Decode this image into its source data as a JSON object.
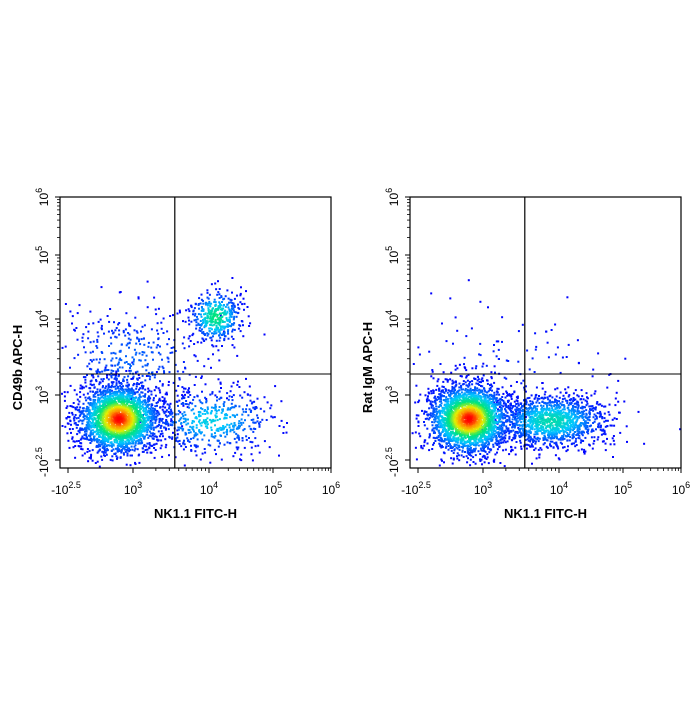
{
  "chart_data": [
    {
      "type": "scatter",
      "subtype": "flow-cytometry-density-dot-plot",
      "xlabel": "NK1.1 FITC-H",
      "ylabel": "CD49b APC-H",
      "x_scale": "biexponential (log10 decades)",
      "y_scale": "biexponential (log10 decades)",
      "xlim_log10": [
        -2.5,
        6
      ],
      "ylim_log10": [
        -2.5,
        6
      ],
      "x_ticks": [
        {
          "base": "-10",
          "exp": "2.5"
        },
        {
          "base": "10",
          "exp": "3"
        },
        {
          "base": "10",
          "exp": "4"
        },
        {
          "base": "10",
          "exp": "5"
        },
        {
          "base": "10",
          "exp": "6"
        }
      ],
      "y_ticks": [
        {
          "base": "-10",
          "exp": "2.5"
        },
        {
          "base": "10",
          "exp": "3"
        },
        {
          "base": "10",
          "exp": "4"
        },
        {
          "base": "10",
          "exp": "5"
        },
        {
          "base": "10",
          "exp": "6"
        }
      ],
      "quadrant_gate_log10": {
        "x": 3.55,
        "y": 3.05
      },
      "populations": [
        {
          "cx_log10": 2.8,
          "cy_log10": 2.85,
          "spread": "dense",
          "region": "lower-left"
        },
        {
          "cx_log10": 4.0,
          "cy_log10": 4.0,
          "spread": "medium",
          "region": "upper-right (NK1.1+ CD49b+)"
        },
        {
          "cx_log10": 3.9,
          "cy_log10": 2.85,
          "spread": "sparse",
          "region": "lower-right"
        }
      ],
      "grid": false,
      "legend": "none",
      "colors": {
        "low": "#0000ff",
        "mid": "#00ffff",
        "mid2": "#00ff00",
        "high": "#ffff00",
        "peak": "#ff0000"
      }
    },
    {
      "type": "scatter",
      "subtype": "flow-cytometry-density-dot-plot",
      "xlabel": "NK1.1 FITC-H",
      "ylabel": "Rat IgM APC-H",
      "x_scale": "biexponential (log10 decades)",
      "y_scale": "biexponential (log10 decades)",
      "xlim_log10": [
        -2.5,
        6
      ],
      "ylim_log10": [
        -2.5,
        6
      ],
      "x_ticks": [
        {
          "base": "-10",
          "exp": "2.5"
        },
        {
          "base": "10",
          "exp": "3"
        },
        {
          "base": "10",
          "exp": "4"
        },
        {
          "base": "10",
          "exp": "5"
        },
        {
          "base": "10",
          "exp": "6"
        }
      ],
      "y_ticks": [
        {
          "base": "-10",
          "exp": "2.5"
        },
        {
          "base": "10",
          "exp": "3"
        },
        {
          "base": "10",
          "exp": "4"
        },
        {
          "base": "10",
          "exp": "5"
        },
        {
          "base": "10",
          "exp": "6"
        }
      ],
      "quadrant_gate_log10": {
        "x": 3.55,
        "y": 3.05
      },
      "populations": [
        {
          "cx_log10": 2.8,
          "cy_log10": 2.85,
          "spread": "dense",
          "region": "lower-left"
        },
        {
          "cx_log10": 3.85,
          "cy_log10": 2.85,
          "spread": "medium",
          "region": "lower-right"
        }
      ],
      "grid": false,
      "legend": "none",
      "colors": {
        "low": "#0000ff",
        "mid": "#00ffff",
        "mid2": "#00ff00",
        "high": "#ffff00",
        "peak": "#ff0000"
      }
    }
  ]
}
